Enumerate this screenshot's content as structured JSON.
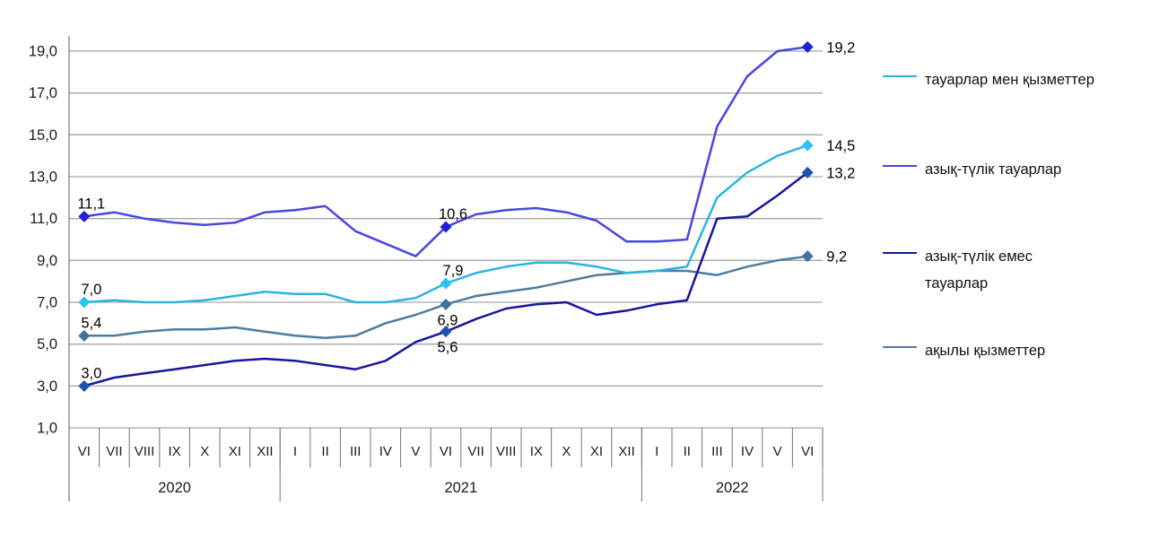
{
  "chart_data": {
    "type": "line",
    "title": "",
    "x": {
      "months": [
        "VI",
        "VII",
        "VIII",
        "IX",
        "X",
        "XI",
        "XII",
        "I",
        "II",
        "III",
        "IV",
        "V",
        "VI",
        "VII",
        "VIII",
        "IX",
        "X",
        "XI",
        "XII",
        "I",
        "II",
        "III",
        "IV",
        "V",
        "VI"
      ],
      "year_groups": [
        {
          "label": "2020",
          "count": 7
        },
        {
          "label": "2021",
          "count": 12
        },
        {
          "label": "2022",
          "count": 6
        }
      ]
    },
    "y": {
      "min": 1.0,
      "max": 19.0,
      "step": 2.0,
      "tick_labels": [
        "19,0",
        "17,0",
        "15,0",
        "13,0",
        "11,0",
        "9,0",
        "7,0",
        "5,0",
        "3,0",
        "1,0"
      ]
    },
    "grid": true,
    "legend_position": "right",
    "series": [
      {
        "name": "тауарлар мен қызметтер",
        "color": "#29b4e3",
        "marker_color": "#2cc3f2",
        "values": [
          7.0,
          7.1,
          7.0,
          7.0,
          7.1,
          7.3,
          7.5,
          7.4,
          7.4,
          7.0,
          7.0,
          7.2,
          7.9,
          8.4,
          8.7,
          8.9,
          8.9,
          8.7,
          8.4,
          8.5,
          8.7,
          12.0,
          13.2,
          14.0,
          14.5
        ],
        "point_labels": [
          {
            "i": 0,
            "text": "7,0",
            "pos": "above"
          },
          {
            "i": 12,
            "text": "7,9",
            "pos": "above"
          },
          {
            "i": 24,
            "text": "14,5",
            "pos": "right"
          }
        ]
      },
      {
        "name": "азық-түлік тауарлар",
        "color": "#4747e2",
        "marker_color": "#1f1fd6",
        "values": [
          11.1,
          11.3,
          11.0,
          10.8,
          10.7,
          10.8,
          11.3,
          11.4,
          11.6,
          10.4,
          9.8,
          9.2,
          10.6,
          11.2,
          11.4,
          11.5,
          11.3,
          10.9,
          9.9,
          9.9,
          10.0,
          15.4,
          17.8,
          19.0,
          19.2
        ],
        "point_labels": [
          {
            "i": 0,
            "text": "11,1",
            "pos": "above"
          },
          {
            "i": 12,
            "text": "10,6",
            "pos": "above"
          },
          {
            "i": 24,
            "text": "19,2",
            "pos": "right"
          }
        ]
      },
      {
        "name": "азық-түлік емес тауарлар",
        "color": "#17179c",
        "marker_color": "#2152ae",
        "values": [
          3.0,
          3.4,
          3.6,
          3.8,
          4.0,
          4.2,
          4.3,
          4.2,
          4.0,
          3.8,
          4.2,
          5.1,
          5.6,
          6.2,
          6.7,
          6.9,
          7.0,
          6.4,
          6.6,
          6.9,
          7.1,
          11.0,
          11.1,
          12.1,
          13.2
        ],
        "point_labels": [
          {
            "i": 0,
            "text": "3,0",
            "pos": "above"
          },
          {
            "i": 12,
            "text": "5,6",
            "pos": "below"
          },
          {
            "i": 24,
            "text": "13,2",
            "pos": "right"
          }
        ]
      },
      {
        "name": "ақылы қызметтер",
        "color": "#4d7ca1",
        "marker_color": "#41719c",
        "values": [
          5.4,
          5.4,
          5.6,
          5.7,
          5.7,
          5.8,
          5.6,
          5.4,
          5.3,
          5.4,
          6.0,
          6.4,
          6.9,
          7.3,
          7.5,
          7.7,
          8.0,
          8.3,
          8.4,
          8.5,
          8.5,
          8.3,
          8.7,
          9.0,
          9.2
        ],
        "point_labels": [
          {
            "i": 0,
            "text": "5,4",
            "pos": "above"
          },
          {
            "i": 12,
            "text": "6,9",
            "pos": "below"
          },
          {
            "i": 24,
            "text": "9,2",
            "pos": "right"
          }
        ]
      }
    ],
    "colors": {
      "gridline": "#a6a6a6",
      "axis": "#808080",
      "tick_text": "#1a1a1a",
      "label_text": "#000000"
    }
  }
}
